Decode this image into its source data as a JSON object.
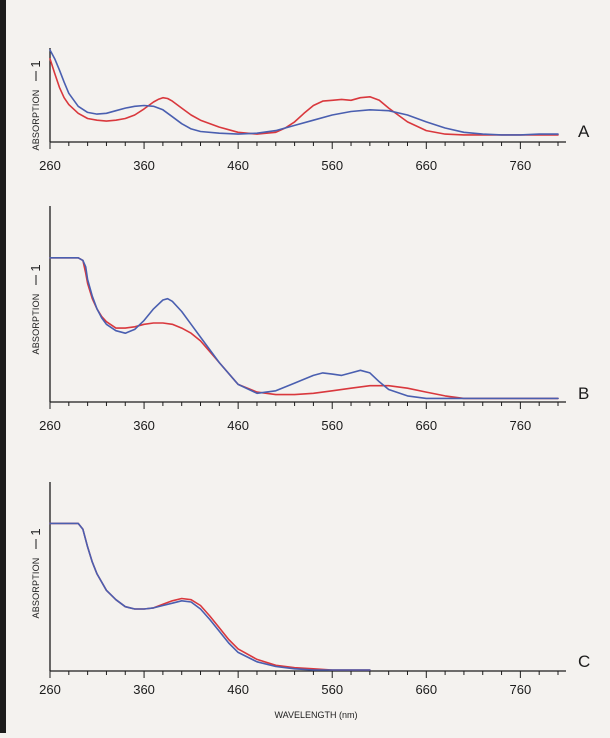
{
  "colors": {
    "red": "#d9383d",
    "blue": "#4a5fb0",
    "axis": "#1c1c1c",
    "background": "#f4f2ef"
  },
  "xlabel": "WAVELENGTH (nm)",
  "chart_data": [
    {
      "type": "line",
      "panel": "A",
      "ylabel": "ABSORPTION",
      "y_tick_label": "1",
      "x_ticks": [
        "260",
        "360",
        "460",
        "560",
        "660",
        "760"
      ],
      "xlim": [
        260,
        800
      ],
      "ylim": [
        0,
        1.05
      ],
      "series": [
        {
          "color": "red",
          "x": [
            260,
            265,
            270,
            275,
            280,
            290,
            300,
            310,
            320,
            330,
            340,
            350,
            360,
            370,
            375,
            380,
            385,
            390,
            400,
            410,
            420,
            440,
            460,
            480,
            500,
            510,
            520,
            530,
            540,
            550,
            560,
            570,
            580,
            590,
            600,
            610,
            620,
            640,
            660,
            680,
            700,
            720,
            740,
            760,
            780,
            800
          ],
          "values": [
            0.95,
            0.78,
            0.62,
            0.5,
            0.42,
            0.32,
            0.26,
            0.24,
            0.23,
            0.24,
            0.26,
            0.3,
            0.37,
            0.45,
            0.48,
            0.5,
            0.49,
            0.46,
            0.38,
            0.3,
            0.24,
            0.16,
            0.1,
            0.08,
            0.1,
            0.15,
            0.22,
            0.32,
            0.41,
            0.46,
            0.47,
            0.48,
            0.47,
            0.5,
            0.51,
            0.47,
            0.38,
            0.22,
            0.12,
            0.08,
            0.07,
            0.07,
            0.07,
            0.07,
            0.07,
            0.07
          ]
        },
        {
          "color": "blue",
          "x": [
            260,
            265,
            270,
            275,
            280,
            290,
            300,
            310,
            320,
            330,
            340,
            350,
            360,
            370,
            380,
            390,
            400,
            410,
            420,
            440,
            460,
            480,
            500,
            520,
            540,
            560,
            580,
            600,
            620,
            640,
            660,
            680,
            700,
            720,
            740,
            760,
            780,
            800
          ],
          "values": [
            1.05,
            0.95,
            0.82,
            0.68,
            0.55,
            0.4,
            0.33,
            0.31,
            0.32,
            0.35,
            0.38,
            0.4,
            0.41,
            0.4,
            0.36,
            0.28,
            0.2,
            0.14,
            0.11,
            0.09,
            0.08,
            0.09,
            0.12,
            0.18,
            0.24,
            0.3,
            0.34,
            0.36,
            0.35,
            0.3,
            0.22,
            0.15,
            0.1,
            0.08,
            0.07,
            0.07,
            0.08,
            0.08
          ]
        }
      ]
    },
    {
      "type": "line",
      "panel": "B",
      "ylabel": "ABSORPTION",
      "y_tick_label": "1",
      "x_ticks": [
        "260",
        "360",
        "460",
        "560",
        "660",
        "760"
      ],
      "xlim": [
        260,
        800
      ],
      "ylim": [
        0,
        1.4
      ],
      "series": [
        {
          "color": "red",
          "x": [
            260,
            290,
            295,
            298,
            300,
            305,
            310,
            315,
            320,
            330,
            340,
            350,
            360,
            370,
            380,
            390,
            400,
            410,
            420,
            440,
            460,
            480,
            500,
            520,
            540,
            560,
            580,
            600,
            610,
            620,
            640,
            660,
            680,
            700,
            720,
            740,
            760,
            780,
            800
          ],
          "values": [
            1.12,
            1.12,
            1.1,
            1.0,
            0.92,
            0.8,
            0.72,
            0.66,
            0.62,
            0.57,
            0.57,
            0.58,
            0.6,
            0.61,
            0.61,
            0.6,
            0.57,
            0.53,
            0.47,
            0.3,
            0.13,
            0.07,
            0.05,
            0.05,
            0.06,
            0.08,
            0.1,
            0.12,
            0.12,
            0.12,
            0.1,
            0.07,
            0.04,
            0.02,
            0.02,
            0.02,
            0.02,
            0.02,
            0.02
          ]
        },
        {
          "color": "blue",
          "x": [
            260,
            290,
            295,
            298,
            300,
            305,
            310,
            315,
            320,
            330,
            340,
            350,
            360,
            370,
            380,
            385,
            390,
            400,
            410,
            420,
            440,
            460,
            480,
            500,
            520,
            540,
            550,
            560,
            570,
            580,
            590,
            600,
            610,
            620,
            640,
            660,
            680,
            700,
            720,
            740,
            760,
            780,
            800
          ],
          "values": [
            1.12,
            1.12,
            1.1,
            1.05,
            0.95,
            0.82,
            0.72,
            0.65,
            0.6,
            0.55,
            0.53,
            0.56,
            0.63,
            0.72,
            0.79,
            0.8,
            0.78,
            0.7,
            0.6,
            0.5,
            0.3,
            0.13,
            0.06,
            0.08,
            0.14,
            0.2,
            0.22,
            0.21,
            0.2,
            0.22,
            0.24,
            0.22,
            0.15,
            0.09,
            0.04,
            0.02,
            0.02,
            0.02,
            0.02,
            0.02,
            0.02,
            0.02,
            0.02
          ]
        }
      ]
    },
    {
      "type": "line",
      "panel": "C",
      "ylabel": "ABSORPTION",
      "y_tick_label": "1",
      "x_ticks": [
        "260",
        "360",
        "460",
        "560",
        "660",
        "760"
      ],
      "xlim": [
        260,
        800
      ],
      "ylim": [
        0,
        1.45
      ],
      "series": [
        {
          "color": "red",
          "x": [
            260,
            290,
            295,
            300,
            305,
            310,
            320,
            330,
            340,
            350,
            360,
            370,
            380,
            390,
            400,
            410,
            420,
            430,
            440,
            450,
            460,
            480,
            500,
            520,
            540,
            560,
            580,
            600
          ],
          "values": [
            1.25,
            1.25,
            1.2,
            1.05,
            0.92,
            0.82,
            0.68,
            0.6,
            0.54,
            0.52,
            0.52,
            0.53,
            0.56,
            0.59,
            0.61,
            0.6,
            0.55,
            0.46,
            0.36,
            0.26,
            0.18,
            0.09,
            0.04,
            0.02,
            0.01,
            0,
            0,
            0
          ]
        },
        {
          "color": "blue",
          "x": [
            260,
            290,
            295,
            300,
            305,
            310,
            320,
            330,
            340,
            350,
            360,
            370,
            380,
            390,
            400,
            410,
            420,
            430,
            440,
            450,
            460,
            480,
            500,
            520,
            540,
            560,
            580,
            600
          ],
          "values": [
            1.25,
            1.25,
            1.2,
            1.05,
            0.92,
            0.82,
            0.68,
            0.6,
            0.54,
            0.52,
            0.52,
            0.53,
            0.55,
            0.57,
            0.59,
            0.58,
            0.52,
            0.43,
            0.33,
            0.23,
            0.15,
            0.07,
            0.03,
            0.01,
            0,
            0,
            0,
            0
          ]
        }
      ]
    }
  ]
}
